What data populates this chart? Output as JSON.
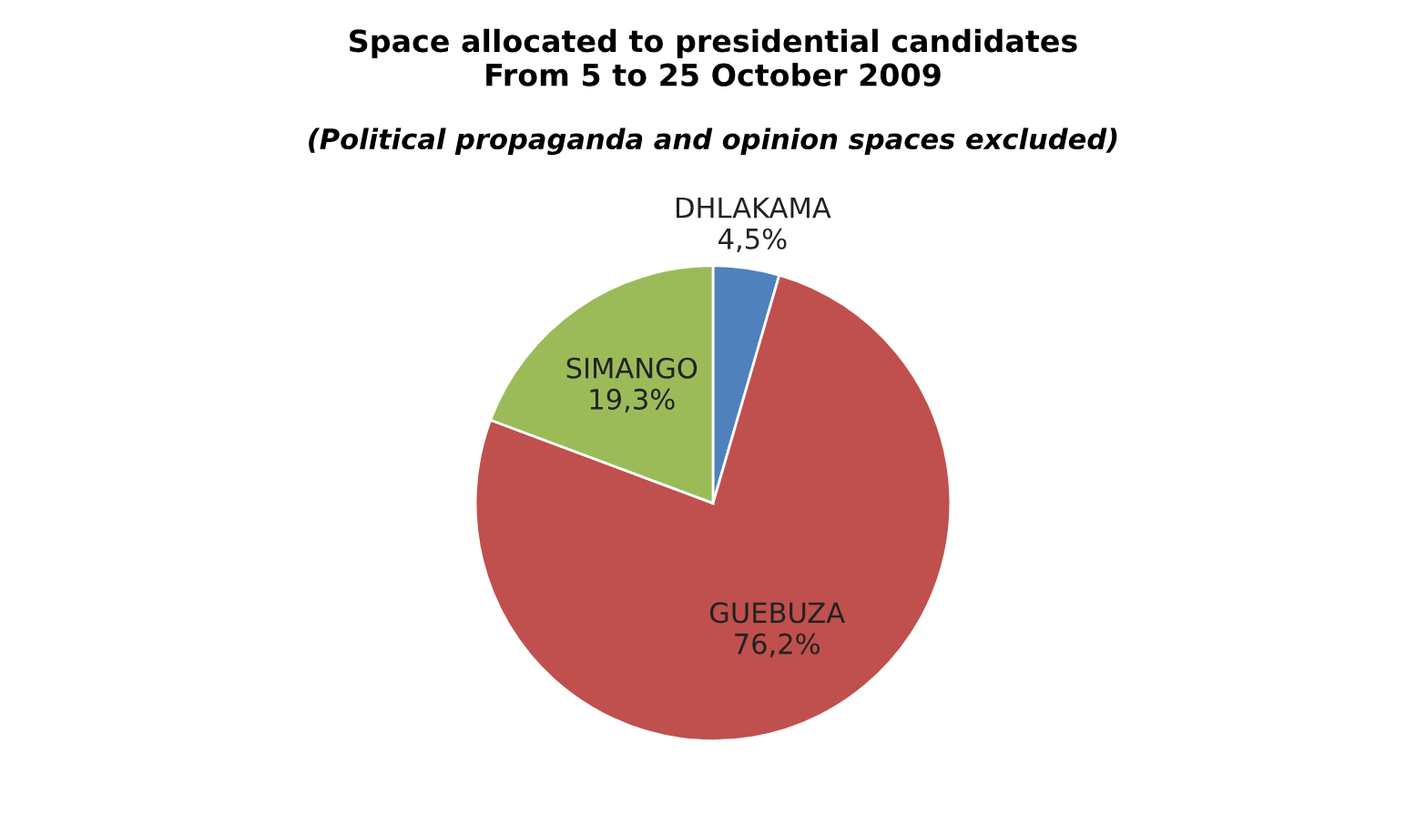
{
  "chart_data": {
    "type": "pie",
    "title": "Space allocated to presidential candidates\nFrom 5 to 25 October 2009",
    "subtitle": "(Political propaganda and opinion spaces excluded)",
    "categories": [
      "DHLAKAMA",
      "GUEBUZA",
      "SIMANGO"
    ],
    "values": [
      4.5,
      76.2,
      19.3
    ],
    "value_labels": [
      "4,5%",
      "76,2%",
      "19,3%"
    ],
    "colors": [
      "#4f81bd",
      "#c0504d",
      "#9bbb59"
    ]
  }
}
